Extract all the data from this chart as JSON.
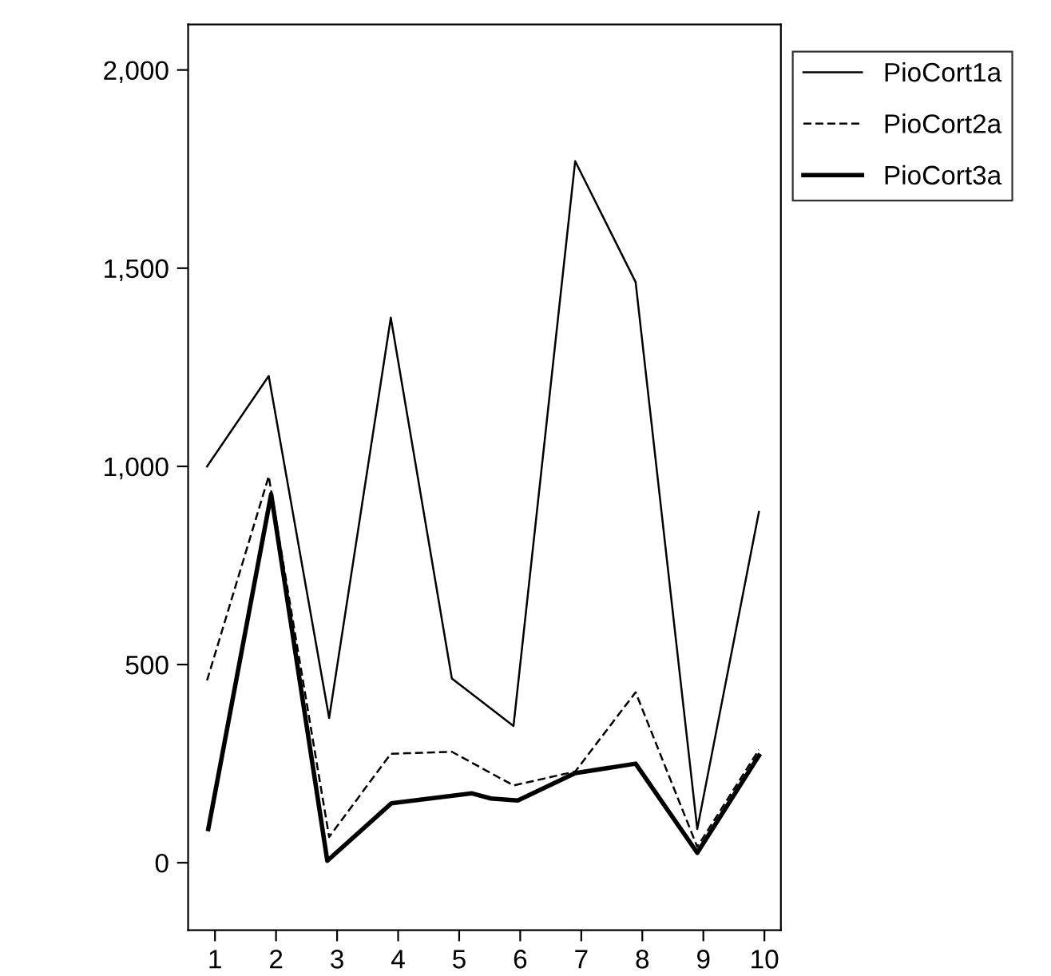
{
  "chart_data": {
    "type": "line",
    "xlim": [
      0.56,
      10.27
    ],
    "ylim": [
      -170,
      2115
    ],
    "xticks": [
      1,
      2,
      3,
      4,
      5,
      6,
      7,
      8,
      9,
      10
    ],
    "yticks": [
      0,
      500,
      {
        "value": 1000,
        "label": "1,000"
      },
      {
        "value": 1500,
        "label": "1,500"
      },
      {
        "value": 2000,
        "label": "2,000"
      }
    ],
    "grid": false,
    "legend": "top right",
    "marker": "none",
    "series": [
      {
        "name": "PioCort1a",
        "color": "#000000",
        "line_style": "solid",
        "x": [
          0.87,
          1.88,
          2.87,
          3.88,
          4.88,
          5.89,
          6.9,
          7.89,
          8.9,
          9.91
        ],
        "values": [
          1000,
          1228,
          365,
          1375,
          465,
          345,
          1770,
          1465,
          85,
          885
        ]
      },
      {
        "name": "PioCort2a",
        "color": "#000000",
        "line_style": "dashed",
        "x": [
          0.87,
          1.88,
          2.87,
          3.88,
          4.88,
          5.89,
          6.9,
          7.89,
          8.9,
          9.91
        ],
        "values": [
          460,
          975,
          65,
          275,
          280,
          195,
          230,
          430,
          40,
          285
        ]
      },
      {
        "name": "PioCort3a",
        "color": "#000000",
        "line_style": "solid",
        "x": [
          0.89,
          1.92,
          2.84,
          3.89,
          5.21,
          5.52,
          5.96,
          6.9,
          7.89,
          8.9,
          9.91
        ],
        "values": [
          85,
          930,
          5,
          150,
          175,
          162,
          157,
          226,
          250,
          25,
          270
        ]
      }
    ]
  }
}
